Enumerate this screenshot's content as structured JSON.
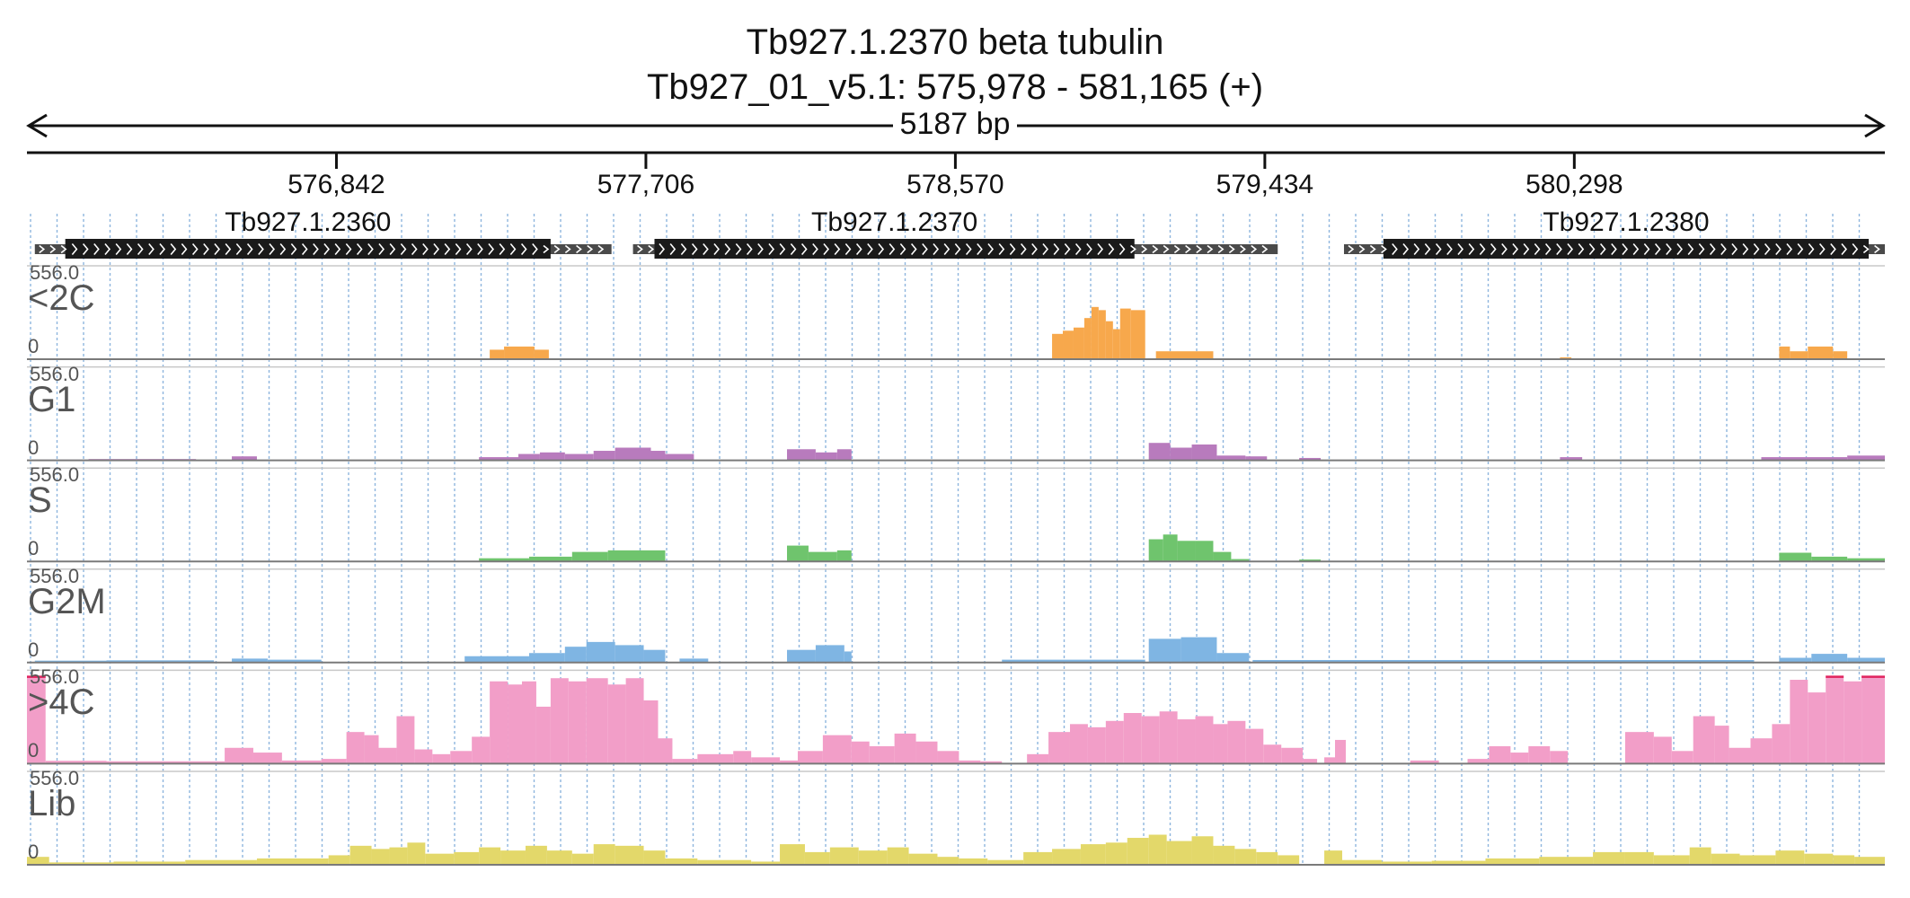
{
  "title": "Tb927.1.2370  beta tubulin",
  "subtitle": "Tb927_01_v5.1: 575,978 - 581,165 (+)",
  "span_label": "5187 bp",
  "region": {
    "start": 575978,
    "end": 581165,
    "strand": "+"
  },
  "ruler": {
    "ticks": [
      {
        "pos": 576842,
        "label": "576,842"
      },
      {
        "pos": 577706,
        "label": "577,706"
      },
      {
        "pos": 578570,
        "label": "578,570"
      },
      {
        "pos": 579434,
        "label": "579,434"
      },
      {
        "pos": 580298,
        "label": "580,298"
      }
    ]
  },
  "genes": [
    {
      "id": "Tb927.1.2360",
      "transcript": [
        576000,
        577610
      ],
      "cds": [
        576085,
        577440
      ]
    },
    {
      "id": "Tb927.1.2370",
      "transcript": [
        577670,
        579470
      ],
      "cds": [
        577730,
        579070
      ]
    },
    {
      "id": "Tb927.1.2380",
      "transcript": [
        579655,
        581165
      ],
      "cds": [
        579765,
        581120
      ]
    }
  ],
  "chart_data": {
    "type": "area",
    "x_range": [
      575978,
      581165
    ],
    "y_range": [
      0,
      556.0
    ],
    "max_label": "556.0",
    "min_label": "0",
    "series": [
      {
        "name": "<2C",
        "color": "#f7a84c",
        "bins": [
          [
            577270,
            577310,
            60
          ],
          [
            577310,
            577395,
            80
          ],
          [
            577395,
            577435,
            60
          ],
          [
            578840,
            578870,
            160
          ],
          [
            578870,
            578900,
            180
          ],
          [
            578900,
            578930,
            200
          ],
          [
            578930,
            578950,
            260
          ],
          [
            578950,
            578970,
            330
          ],
          [
            578970,
            578990,
            310
          ],
          [
            578990,
            579010,
            240
          ],
          [
            579010,
            579030,
            190
          ],
          [
            579030,
            579060,
            320
          ],
          [
            579060,
            579100,
            310
          ],
          [
            579130,
            579290,
            50
          ],
          [
            580258,
            580290,
            12
          ],
          [
            580870,
            580900,
            80
          ],
          [
            580900,
            580950,
            50
          ],
          [
            580950,
            581020,
            80
          ],
          [
            581020,
            581060,
            50
          ]
        ]
      },
      {
        "name": "G1",
        "color": "#b87bbd",
        "bins": [
          [
            576000,
            576150,
            4
          ],
          [
            576150,
            576450,
            8
          ],
          [
            576550,
            576620,
            25
          ],
          [
            577240,
            577350,
            20
          ],
          [
            577350,
            577410,
            40
          ],
          [
            577410,
            577480,
            50
          ],
          [
            577480,
            577560,
            40
          ],
          [
            577560,
            577620,
            60
          ],
          [
            577620,
            577720,
            80
          ],
          [
            577720,
            577760,
            60
          ],
          [
            577760,
            577840,
            40
          ],
          [
            578100,
            578180,
            70
          ],
          [
            578180,
            578240,
            50
          ],
          [
            578240,
            578280,
            70
          ],
          [
            579110,
            579170,
            110
          ],
          [
            579170,
            579230,
            80
          ],
          [
            579230,
            579300,
            100
          ],
          [
            579300,
            579380,
            30
          ],
          [
            579380,
            579440,
            25
          ],
          [
            579530,
            579590,
            15
          ],
          [
            580258,
            580320,
            20
          ],
          [
            580820,
            581060,
            20
          ],
          [
            581060,
            581165,
            30
          ]
        ]
      },
      {
        "name": "S",
        "color": "#6fc46d",
        "bins": [
          [
            577240,
            577380,
            20
          ],
          [
            577380,
            577500,
            30
          ],
          [
            577500,
            577600,
            60
          ],
          [
            577600,
            577760,
            70
          ],
          [
            578100,
            578160,
            100
          ],
          [
            578160,
            578240,
            60
          ],
          [
            578240,
            578280,
            70
          ],
          [
            579110,
            579150,
            140
          ],
          [
            579150,
            579190,
            170
          ],
          [
            579190,
            579240,
            130
          ],
          [
            579240,
            579290,
            130
          ],
          [
            579290,
            579340,
            60
          ],
          [
            579340,
            579390,
            15
          ],
          [
            579530,
            579590,
            12
          ],
          [
            580870,
            580960,
            55
          ],
          [
            580960,
            581060,
            30
          ],
          [
            581060,
            581165,
            20
          ]
        ]
      },
      {
        "name": "G2M",
        "color": "#7fb5e3",
        "bins": [
          [
            576000,
            576200,
            12
          ],
          [
            576200,
            576500,
            14
          ],
          [
            576550,
            576650,
            25
          ],
          [
            576650,
            576800,
            18
          ],
          [
            577200,
            577380,
            40
          ],
          [
            577380,
            577480,
            60
          ],
          [
            577480,
            577540,
            100
          ],
          [
            577540,
            577620,
            130
          ],
          [
            577620,
            577700,
            110
          ],
          [
            577700,
            577760,
            80
          ],
          [
            577800,
            577880,
            25
          ],
          [
            578100,
            578180,
            80
          ],
          [
            578180,
            578260,
            110
          ],
          [
            578260,
            578280,
            70
          ],
          [
            578700,
            579100,
            18
          ],
          [
            579110,
            579200,
            150
          ],
          [
            579200,
            579300,
            160
          ],
          [
            579300,
            579390,
            60
          ],
          [
            579400,
            580800,
            16
          ],
          [
            580870,
            580960,
            30
          ],
          [
            580960,
            581060,
            55
          ],
          [
            581060,
            581165,
            30
          ]
        ]
      },
      {
        "name": ">4C",
        "color": "#f29ec8",
        "bins": [
          [
            575978,
            576030,
            556
          ],
          [
            576030,
            576200,
            18
          ],
          [
            576200,
            576530,
            15
          ],
          [
            576530,
            576610,
            100
          ],
          [
            576610,
            576690,
            70
          ],
          [
            576690,
            576800,
            20
          ],
          [
            576800,
            576870,
            30
          ],
          [
            576870,
            576920,
            200
          ],
          [
            576920,
            576960,
            180
          ],
          [
            576960,
            577010,
            100
          ],
          [
            577010,
            577060,
            300
          ],
          [
            577060,
            577110,
            90
          ],
          [
            577110,
            577160,
            60
          ],
          [
            577160,
            577220,
            80
          ],
          [
            577220,
            577270,
            170
          ],
          [
            577270,
            577320,
            520
          ],
          [
            577320,
            577360,
            500
          ],
          [
            577360,
            577400,
            520
          ],
          [
            577400,
            577440,
            360
          ],
          [
            577440,
            577490,
            540
          ],
          [
            577490,
            577540,
            520
          ],
          [
            577540,
            577600,
            540
          ],
          [
            577600,
            577650,
            500
          ],
          [
            577650,
            577700,
            540
          ],
          [
            577700,
            577740,
            400
          ],
          [
            577740,
            577780,
            160
          ],
          [
            577780,
            577850,
            30
          ],
          [
            577850,
            577950,
            60
          ],
          [
            577950,
            578000,
            80
          ],
          [
            578000,
            578080,
            40
          ],
          [
            578080,
            578130,
            20
          ],
          [
            578130,
            578200,
            80
          ],
          [
            578200,
            578280,
            180
          ],
          [
            578280,
            578330,
            140
          ],
          [
            578330,
            578400,
            110
          ],
          [
            578400,
            578460,
            190
          ],
          [
            578460,
            578520,
            140
          ],
          [
            578520,
            578580,
            80
          ],
          [
            578580,
            578640,
            20
          ],
          [
            578640,
            578700,
            15
          ],
          [
            578770,
            578830,
            60
          ],
          [
            578830,
            578890,
            200
          ],
          [
            578890,
            578940,
            250
          ],
          [
            578940,
            578990,
            230
          ],
          [
            578990,
            579040,
            270
          ],
          [
            579040,
            579090,
            320
          ],
          [
            579090,
            579140,
            300
          ],
          [
            579140,
            579190,
            330
          ],
          [
            579190,
            579240,
            280
          ],
          [
            579240,
            579290,
            300
          ],
          [
            579290,
            579330,
            250
          ],
          [
            579330,
            579380,
            270
          ],
          [
            579380,
            579430,
            220
          ],
          [
            579430,
            579480,
            120
          ],
          [
            579480,
            579540,
            100
          ],
          [
            579540,
            579580,
            30
          ],
          [
            579600,
            579630,
            40
          ],
          [
            579630,
            579660,
            150
          ],
          [
            579840,
            579920,
            20
          ],
          [
            580000,
            580060,
            30
          ],
          [
            580060,
            580120,
            110
          ],
          [
            580120,
            580170,
            70
          ],
          [
            580170,
            580230,
            110
          ],
          [
            580230,
            580280,
            80
          ],
          [
            580440,
            580520,
            200
          ],
          [
            580520,
            580570,
            170
          ],
          [
            580570,
            580630,
            80
          ],
          [
            580630,
            580690,
            300
          ],
          [
            580690,
            580730,
            240
          ],
          [
            580730,
            580790,
            100
          ],
          [
            580790,
            580850,
            160
          ],
          [
            580850,
            580900,
            250
          ],
          [
            580900,
            580950,
            530
          ],
          [
            580950,
            581000,
            450
          ],
          [
            581000,
            581050,
            556
          ],
          [
            581050,
            581100,
            520
          ],
          [
            581100,
            581165,
            556
          ]
        ]
      },
      {
        "name": "Lib",
        "color": "#e3d86a",
        "bins": [
          [
            575978,
            576040,
            50
          ],
          [
            576040,
            576220,
            15
          ],
          [
            576220,
            576420,
            20
          ],
          [
            576420,
            576620,
            30
          ],
          [
            576620,
            576820,
            40
          ],
          [
            576820,
            576880,
            60
          ],
          [
            576880,
            576940,
            120
          ],
          [
            576940,
            576990,
            100
          ],
          [
            576990,
            577040,
            110
          ],
          [
            577040,
            577090,
            140
          ],
          [
            577090,
            577170,
            70
          ],
          [
            577170,
            577240,
            80
          ],
          [
            577240,
            577300,
            110
          ],
          [
            577300,
            577370,
            90
          ],
          [
            577370,
            577430,
            120
          ],
          [
            577430,
            577500,
            90
          ],
          [
            577500,
            577560,
            70
          ],
          [
            577560,
            577620,
            130
          ],
          [
            577620,
            577700,
            120
          ],
          [
            577700,
            577760,
            90
          ],
          [
            577760,
            577850,
            40
          ],
          [
            577850,
            578000,
            30
          ],
          [
            578000,
            578080,
            20
          ],
          [
            578080,
            578150,
            130
          ],
          [
            578150,
            578220,
            80
          ],
          [
            578220,
            578300,
            110
          ],
          [
            578300,
            578380,
            90
          ],
          [
            578380,
            578440,
            110
          ],
          [
            578440,
            578520,
            70
          ],
          [
            578520,
            578580,
            50
          ],
          [
            578580,
            578660,
            40
          ],
          [
            578660,
            578760,
            30
          ],
          [
            578760,
            578840,
            80
          ],
          [
            578840,
            578920,
            100
          ],
          [
            578920,
            578990,
            130
          ],
          [
            578990,
            579050,
            140
          ],
          [
            579050,
            579110,
            170
          ],
          [
            579110,
            579160,
            190
          ],
          [
            579160,
            579230,
            150
          ],
          [
            579230,
            579290,
            180
          ],
          [
            579290,
            579350,
            120
          ],
          [
            579350,
            579410,
            100
          ],
          [
            579410,
            579470,
            80
          ],
          [
            579470,
            579530,
            60
          ],
          [
            579600,
            579650,
            90
          ],
          [
            579650,
            579760,
            30
          ],
          [
            579760,
            579900,
            20
          ],
          [
            579900,
            580050,
            25
          ],
          [
            580050,
            580200,
            40
          ],
          [
            580200,
            580350,
            50
          ],
          [
            580350,
            580440,
            80
          ],
          [
            580440,
            580520,
            80
          ],
          [
            580520,
            580620,
            60
          ],
          [
            580620,
            580680,
            110
          ],
          [
            580680,
            580760,
            70
          ],
          [
            580760,
            580860,
            60
          ],
          [
            580860,
            580940,
            90
          ],
          [
            580940,
            581020,
            70
          ],
          [
            581020,
            581080,
            60
          ],
          [
            581080,
            581165,
            50
          ]
        ]
      }
    ]
  }
}
